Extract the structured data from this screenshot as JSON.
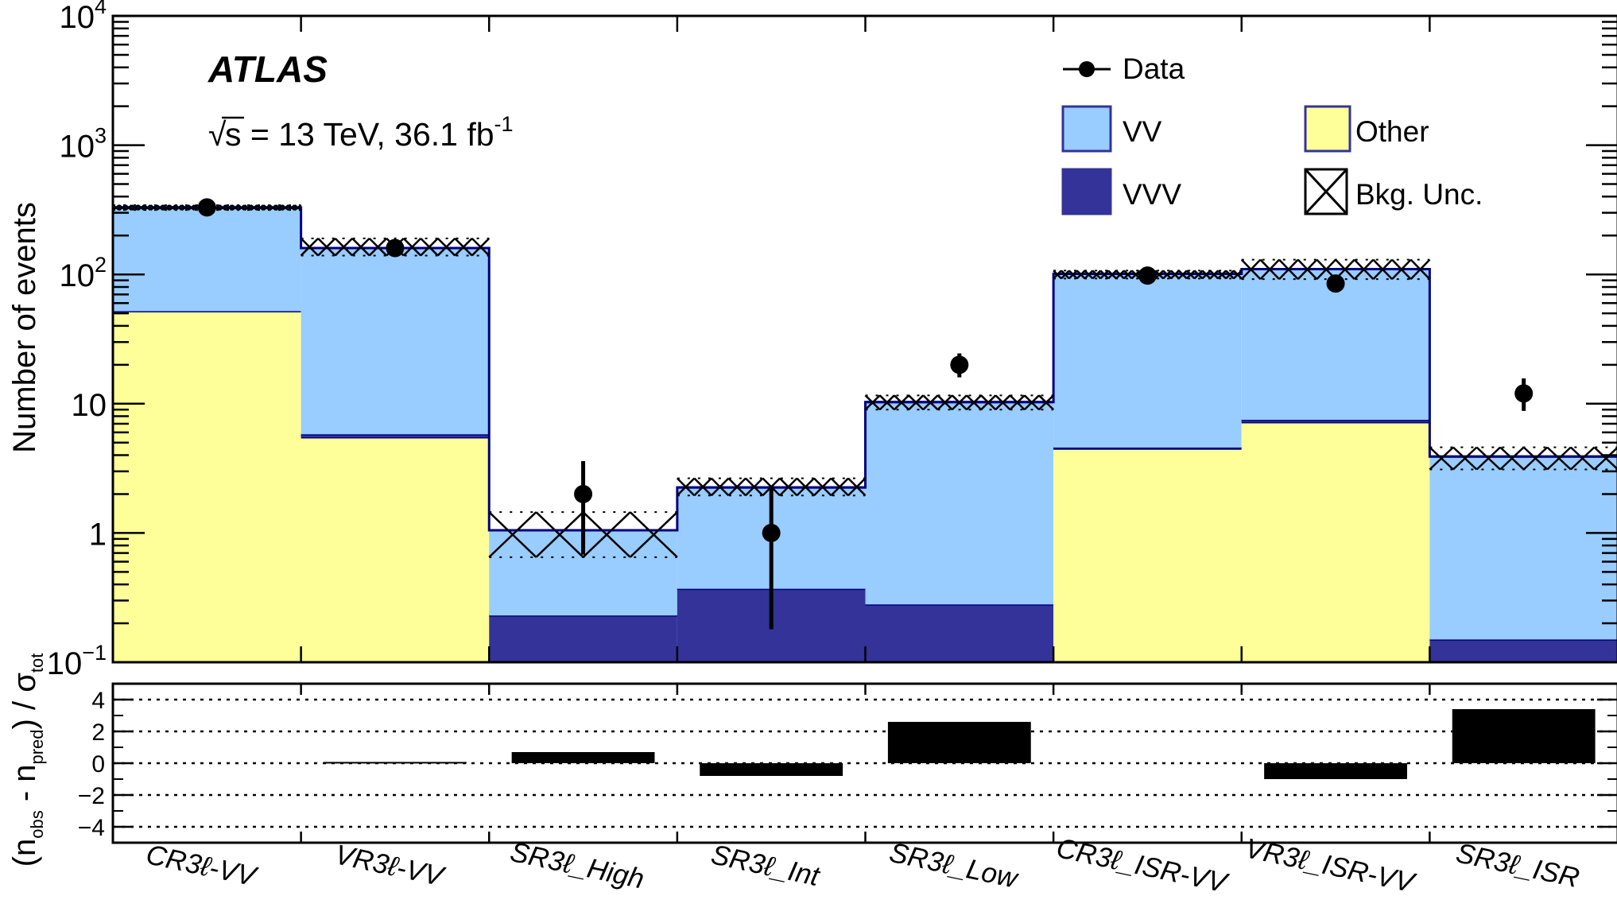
{
  "chart_data": [
    {
      "type": "bar",
      "stacked": true,
      "log_scale": true,
      "ylabel": "Number of events",
      "ylim": [
        0.1,
        10000
      ],
      "yticks": [
        {
          "value": 0.1,
          "base": "10",
          "exp": "−1"
        },
        {
          "value": 1,
          "base": "1",
          "exp": ""
        },
        {
          "value": 10,
          "base": "10",
          "exp": ""
        },
        {
          "value": 100,
          "base": "10",
          "exp": "2"
        },
        {
          "value": 1000,
          "base": "10",
          "exp": "3"
        },
        {
          "value": 10000,
          "base": "10",
          "exp": "4"
        }
      ],
      "categories": [
        "CR3ℓ-VV",
        "VR3ℓ-VV",
        "SR3ℓ_High",
        "SR3ℓ_Int",
        "SR3ℓ_Low",
        "CR3ℓ_ISR-VV",
        "VR3ℓ_ISR-VV",
        "SR3ℓ_ISR"
      ],
      "series": [
        {
          "name": "Other",
          "color": "#ffff99",
          "values": [
            52,
            5.5,
            0,
            0,
            0,
            4.5,
            7.2,
            0
          ]
        },
        {
          "name": "VVV",
          "color": "#333399",
          "values": [
            0,
            0.3,
            0.23,
            0.37,
            0.28,
            0.08,
            0.3,
            0.15
          ]
        },
        {
          "name": "VV",
          "color": "#99ccff",
          "values": [
            277,
            154.2,
            0.82,
            1.88,
            10.02,
            96.42,
            102.5,
            3.75
          ]
        }
      ],
      "total_bkg": [
        329,
        160,
        1.05,
        2.25,
        10.3,
        101,
        110,
        3.9
      ],
      "bkg_uncertainty": [
        [
          315,
          343
        ],
        [
          140,
          190
        ],
        [
          0.65,
          1.45
        ],
        [
          1.95,
          2.65
        ],
        [
          9.0,
          11.6
        ],
        [
          93,
          107
        ],
        [
          92,
          130
        ],
        [
          3.1,
          4.6
        ]
      ],
      "data": [
        {
          "value": 330,
          "err": [
            310,
            350
          ]
        },
        {
          "value": 160,
          "err": [
            150,
            172
          ]
        },
        {
          "value": 2,
          "err": [
            0.68,
            3.6
          ]
        },
        {
          "value": 1,
          "err": [
            0.18,
            2.3
          ]
        },
        {
          "value": 20,
          "err": [
            16,
            24.5
          ]
        },
        {
          "value": 98,
          "err": [
            92,
            104
          ]
        },
        {
          "value": 85,
          "err": [
            79,
            92
          ]
        },
        {
          "value": 12,
          "err": [
            8.8,
            15.7
          ]
        }
      ],
      "legend": {
        "placement": "top-right",
        "entries": [
          {
            "label": "Data",
            "marker": "data-point"
          },
          {
            "label": "VV",
            "color": "#99ccff"
          },
          {
            "label": "Other",
            "color": "#ffff99"
          },
          {
            "label": "VVV",
            "color": "#333399"
          },
          {
            "label": "Bkg. Unc.",
            "marker": "hatch"
          }
        ]
      },
      "annotations": {
        "experiment": "ATLAS",
        "sqrt_symbol": "√",
        "energy_text_a": "s = 13 TeV, 36.1 fb",
        "energy_sup": "-1"
      }
    },
    {
      "type": "bar",
      "ylabel_parts": {
        "open": "(n",
        "obs_sub": "obs",
        "mid": " - n",
        "pred_sub": "pred",
        "close": ") / σ",
        "tot_sub": "tot"
      },
      "ylim": [
        -5,
        5
      ],
      "yticks": [
        "4",
        "2",
        "0",
        "−2",
        "−4"
      ],
      "ytick_values": [
        4,
        2,
        0,
        -2,
        -4
      ],
      "categories": [
        "CR3ℓ-VV",
        "VR3ℓ-VV",
        "SR3ℓ_High",
        "SR3ℓ_Int",
        "SR3ℓ_Low",
        "CR3ℓ_ISR-VV",
        "VR3ℓ_ISR-VV",
        "SR3ℓ_ISR"
      ],
      "values": [
        0.0,
        0.08,
        0.7,
        -0.8,
        2.6,
        0.0,
        -1.0,
        3.4
      ],
      "grid": true,
      "bar_color": "#000000"
    }
  ]
}
